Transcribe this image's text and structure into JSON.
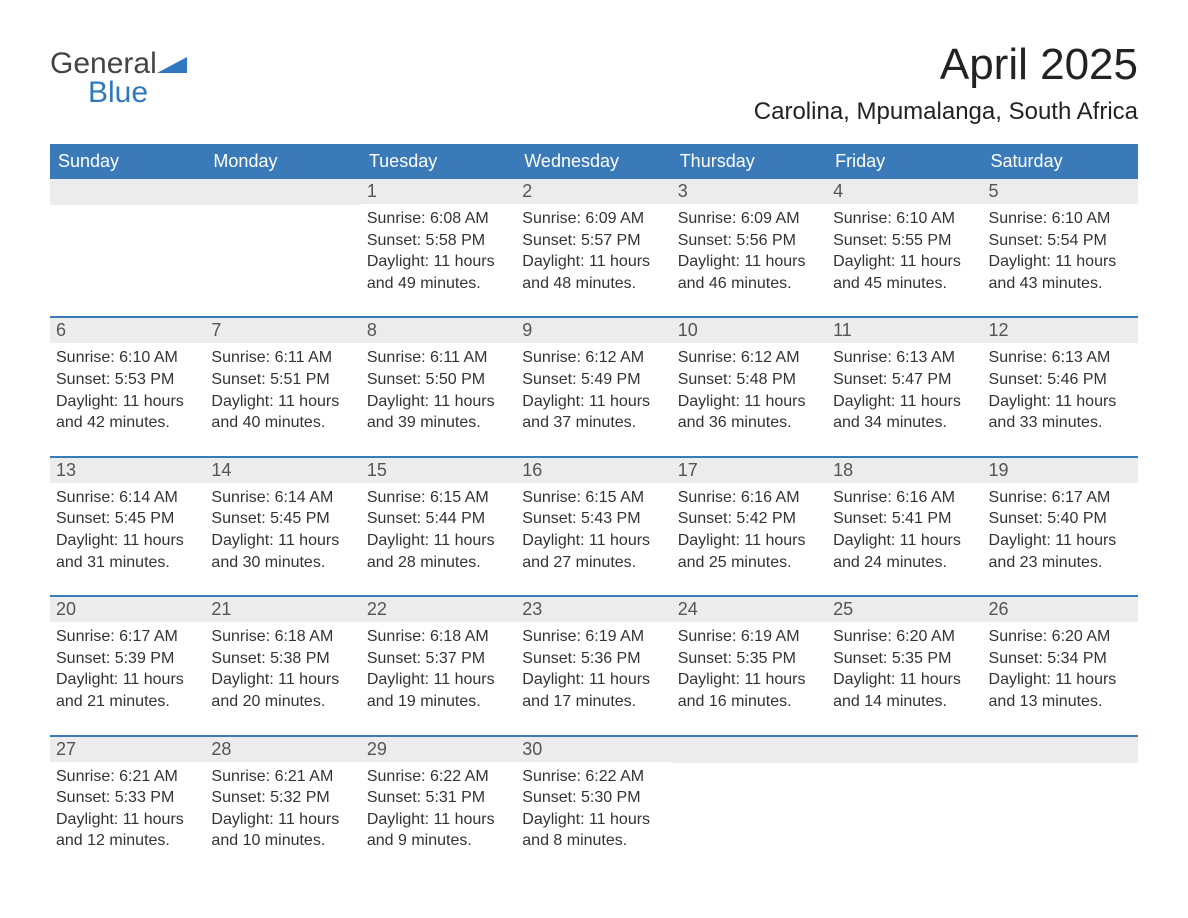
{
  "brand": {
    "name_line1": "General",
    "name_line2": "Blue",
    "text_color": "#444444",
    "accent_color": "#2f78bd",
    "mark_color": "#2f78bd"
  },
  "header": {
    "month_title": "April 2025",
    "location": "Carolina, Mpumalanga, South Africa",
    "title_fontsize": 44,
    "location_fontsize": 24,
    "title_color": "#222222"
  },
  "calendar": {
    "type": "table",
    "header_bg": "#3a7ab8",
    "header_fg": "#ffffff",
    "daynum_bg": "#ececec",
    "daynum_fg": "#555555",
    "row_divider_color": "#3a7ab8",
    "body_text_color": "#333333",
    "body_fontsize": 16,
    "weekday_fontsize": 18,
    "columns": [
      "Sunday",
      "Monday",
      "Tuesday",
      "Wednesday",
      "Thursday",
      "Friday",
      "Saturday"
    ],
    "weeks": [
      [
        {
          "n": "",
          "sunrise": "",
          "sunset": "",
          "daylight": ""
        },
        {
          "n": "",
          "sunrise": "",
          "sunset": "",
          "daylight": ""
        },
        {
          "n": "1",
          "sunrise": "Sunrise: 6:08 AM",
          "sunset": "Sunset: 5:58 PM",
          "daylight": "Daylight: 11 hours and 49 minutes."
        },
        {
          "n": "2",
          "sunrise": "Sunrise: 6:09 AM",
          "sunset": "Sunset: 5:57 PM",
          "daylight": "Daylight: 11 hours and 48 minutes."
        },
        {
          "n": "3",
          "sunrise": "Sunrise: 6:09 AM",
          "sunset": "Sunset: 5:56 PM",
          "daylight": "Daylight: 11 hours and 46 minutes."
        },
        {
          "n": "4",
          "sunrise": "Sunrise: 6:10 AM",
          "sunset": "Sunset: 5:55 PM",
          "daylight": "Daylight: 11 hours and 45 minutes."
        },
        {
          "n": "5",
          "sunrise": "Sunrise: 6:10 AM",
          "sunset": "Sunset: 5:54 PM",
          "daylight": "Daylight: 11 hours and 43 minutes."
        }
      ],
      [
        {
          "n": "6",
          "sunrise": "Sunrise: 6:10 AM",
          "sunset": "Sunset: 5:53 PM",
          "daylight": "Daylight: 11 hours and 42 minutes."
        },
        {
          "n": "7",
          "sunrise": "Sunrise: 6:11 AM",
          "sunset": "Sunset: 5:51 PM",
          "daylight": "Daylight: 11 hours and 40 minutes."
        },
        {
          "n": "8",
          "sunrise": "Sunrise: 6:11 AM",
          "sunset": "Sunset: 5:50 PM",
          "daylight": "Daylight: 11 hours and 39 minutes."
        },
        {
          "n": "9",
          "sunrise": "Sunrise: 6:12 AM",
          "sunset": "Sunset: 5:49 PM",
          "daylight": "Daylight: 11 hours and 37 minutes."
        },
        {
          "n": "10",
          "sunrise": "Sunrise: 6:12 AM",
          "sunset": "Sunset: 5:48 PM",
          "daylight": "Daylight: 11 hours and 36 minutes."
        },
        {
          "n": "11",
          "sunrise": "Sunrise: 6:13 AM",
          "sunset": "Sunset: 5:47 PM",
          "daylight": "Daylight: 11 hours and 34 minutes."
        },
        {
          "n": "12",
          "sunrise": "Sunrise: 6:13 AM",
          "sunset": "Sunset: 5:46 PM",
          "daylight": "Daylight: 11 hours and 33 minutes."
        }
      ],
      [
        {
          "n": "13",
          "sunrise": "Sunrise: 6:14 AM",
          "sunset": "Sunset: 5:45 PM",
          "daylight": "Daylight: 11 hours and 31 minutes."
        },
        {
          "n": "14",
          "sunrise": "Sunrise: 6:14 AM",
          "sunset": "Sunset: 5:45 PM",
          "daylight": "Daylight: 11 hours and 30 minutes."
        },
        {
          "n": "15",
          "sunrise": "Sunrise: 6:15 AM",
          "sunset": "Sunset: 5:44 PM",
          "daylight": "Daylight: 11 hours and 28 minutes."
        },
        {
          "n": "16",
          "sunrise": "Sunrise: 6:15 AM",
          "sunset": "Sunset: 5:43 PM",
          "daylight": "Daylight: 11 hours and 27 minutes."
        },
        {
          "n": "17",
          "sunrise": "Sunrise: 6:16 AM",
          "sunset": "Sunset: 5:42 PM",
          "daylight": "Daylight: 11 hours and 25 minutes."
        },
        {
          "n": "18",
          "sunrise": "Sunrise: 6:16 AM",
          "sunset": "Sunset: 5:41 PM",
          "daylight": "Daylight: 11 hours and 24 minutes."
        },
        {
          "n": "19",
          "sunrise": "Sunrise: 6:17 AM",
          "sunset": "Sunset: 5:40 PM",
          "daylight": "Daylight: 11 hours and 23 minutes."
        }
      ],
      [
        {
          "n": "20",
          "sunrise": "Sunrise: 6:17 AM",
          "sunset": "Sunset: 5:39 PM",
          "daylight": "Daylight: 11 hours and 21 minutes."
        },
        {
          "n": "21",
          "sunrise": "Sunrise: 6:18 AM",
          "sunset": "Sunset: 5:38 PM",
          "daylight": "Daylight: 11 hours and 20 minutes."
        },
        {
          "n": "22",
          "sunrise": "Sunrise: 6:18 AM",
          "sunset": "Sunset: 5:37 PM",
          "daylight": "Daylight: 11 hours and 19 minutes."
        },
        {
          "n": "23",
          "sunrise": "Sunrise: 6:19 AM",
          "sunset": "Sunset: 5:36 PM",
          "daylight": "Daylight: 11 hours and 17 minutes."
        },
        {
          "n": "24",
          "sunrise": "Sunrise: 6:19 AM",
          "sunset": "Sunset: 5:35 PM",
          "daylight": "Daylight: 11 hours and 16 minutes."
        },
        {
          "n": "25",
          "sunrise": "Sunrise: 6:20 AM",
          "sunset": "Sunset: 5:35 PM",
          "daylight": "Daylight: 11 hours and 14 minutes."
        },
        {
          "n": "26",
          "sunrise": "Sunrise: 6:20 AM",
          "sunset": "Sunset: 5:34 PM",
          "daylight": "Daylight: 11 hours and 13 minutes."
        }
      ],
      [
        {
          "n": "27",
          "sunrise": "Sunrise: 6:21 AM",
          "sunset": "Sunset: 5:33 PM",
          "daylight": "Daylight: 11 hours and 12 minutes."
        },
        {
          "n": "28",
          "sunrise": "Sunrise: 6:21 AM",
          "sunset": "Sunset: 5:32 PM",
          "daylight": "Daylight: 11 hours and 10 minutes."
        },
        {
          "n": "29",
          "sunrise": "Sunrise: 6:22 AM",
          "sunset": "Sunset: 5:31 PM",
          "daylight": "Daylight: 11 hours and 9 minutes."
        },
        {
          "n": "30",
          "sunrise": "Sunrise: 6:22 AM",
          "sunset": "Sunset: 5:30 PM",
          "daylight": "Daylight: 11 hours and 8 minutes."
        },
        {
          "n": "",
          "sunrise": "",
          "sunset": "",
          "daylight": ""
        },
        {
          "n": "",
          "sunrise": "",
          "sunset": "",
          "daylight": ""
        },
        {
          "n": "",
          "sunrise": "",
          "sunset": "",
          "daylight": ""
        }
      ]
    ]
  }
}
